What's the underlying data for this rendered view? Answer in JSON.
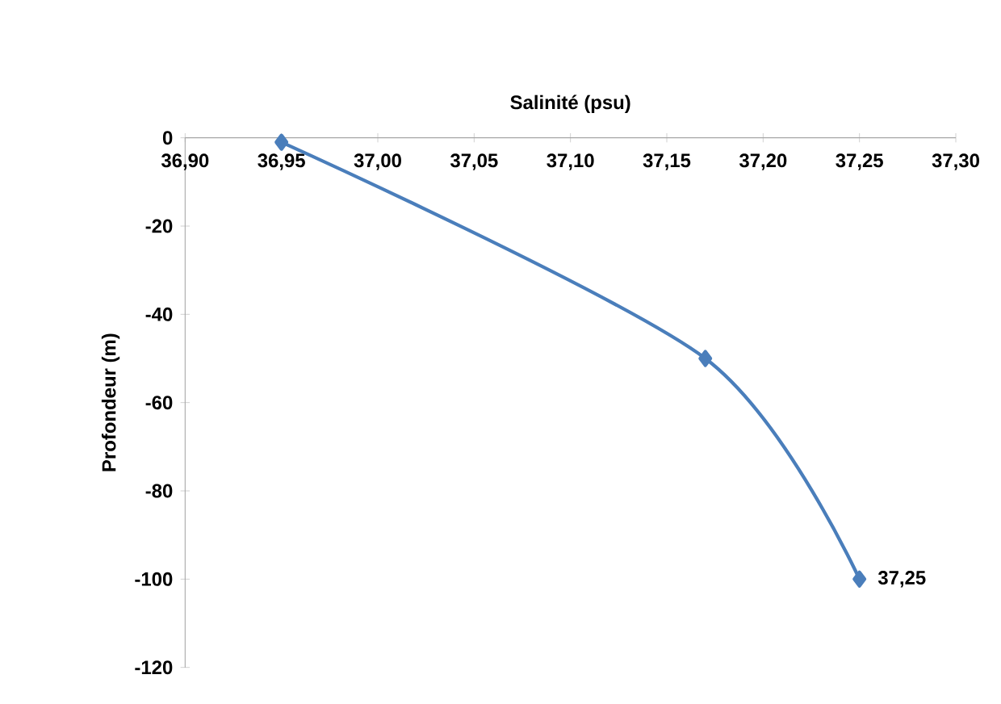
{
  "chart_data": {
    "type": "line",
    "xlabel": "Salinité (psu)",
    "ylabel": "Profondeur (m)",
    "xlim": [
      36.9,
      37.3
    ],
    "xticks": [
      {
        "value": 36.9,
        "label": "36,90"
      },
      {
        "value": 36.95,
        "label": "36,95"
      },
      {
        "value": 37.0,
        "label": "37,00"
      },
      {
        "value": 37.05,
        "label": "37,05"
      },
      {
        "value": 37.1,
        "label": "37,10"
      },
      {
        "value": 37.15,
        "label": "37,15"
      },
      {
        "value": 37.2,
        "label": "37,20"
      },
      {
        "value": 37.25,
        "label": "37,25"
      },
      {
        "value": 37.3,
        "label": "37,30"
      }
    ],
    "ylim": [
      -120,
      0
    ],
    "yticks": [
      -120,
      -100,
      -80,
      -60,
      -40,
      -20,
      0
    ],
    "series": [
      {
        "color": "#4a7ebb",
        "x": [
          36.95,
          37.17,
          37.25
        ],
        "values": [
          -1,
          -50,
          -100
        ]
      }
    ],
    "marker": "diamond",
    "line_style": "solid",
    "grid": false,
    "legend": false,
    "annotations": [
      {
        "text": "37,25",
        "x": 37.25,
        "y": -100
      }
    ]
  }
}
